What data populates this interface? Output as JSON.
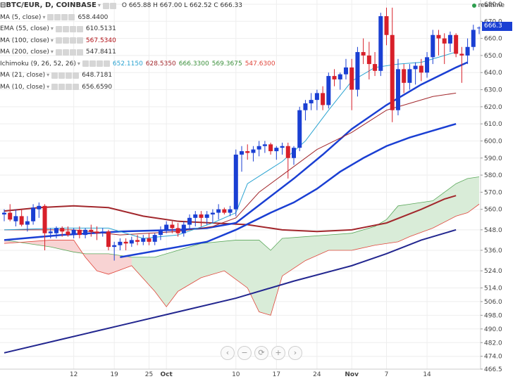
{
  "header": {
    "symbol": "BTC/EUR, D, COINBASE",
    "ohlc": "O 665.88 H 667.00 L 662.52 C 666.33"
  },
  "realtime_label": "realtime",
  "last_price": "666.3",
  "indicators": [
    {
      "name": "MA (5, close)",
      "values": [
        "658.4400"
      ],
      "colors": [
        "#333333"
      ]
    },
    {
      "name": "EMA (55, close)",
      "values": [
        "610.5131"
      ],
      "colors": [
        "#333333"
      ]
    },
    {
      "name": "MA (100, close)",
      "values": [
        "567.5340"
      ],
      "colors": [
        "#b11016"
      ]
    },
    {
      "name": "MA (200, close)",
      "values": [
        "547.8411"
      ],
      "colors": [
        "#333333"
      ]
    },
    {
      "name": "Ichimoku (9, 26, 52, 26)",
      "values": [
        "652.1150",
        "628.5350",
        "666.3300",
        "569.3675",
        "547.6300"
      ],
      "colors": [
        "#2aa3d1",
        "#a2272c",
        "#3a8f3a",
        "#3a8f3a",
        "#e0453a"
      ]
    },
    {
      "name": "MA (21, close)",
      "values": [
        "648.7181"
      ],
      "colors": [
        "#333333"
      ]
    },
    {
      "name": "MA (10, close)",
      "values": [
        "656.6590"
      ],
      "colors": [
        "#333333"
      ]
    }
  ],
  "nav_buttons": [
    {
      "name": "scroll-left-button",
      "glyph": "‹"
    },
    {
      "name": "zoom-out-button",
      "glyph": "−"
    },
    {
      "name": "reset-button",
      "glyph": "⟳"
    },
    {
      "name": "zoom-in-button",
      "glyph": "+"
    },
    {
      "name": "scroll-right-button",
      "glyph": "›"
    }
  ],
  "chart_data": {
    "type": "candlestick",
    "y_ticks": [
      466.5,
      474.0,
      482.0,
      490.0,
      498.0,
      506.0,
      514.0,
      524.0,
      536.0,
      548.0,
      560.0,
      570.0,
      580.0,
      590.0,
      600.0,
      610.0,
      620.0,
      630.0,
      640.0,
      650.0,
      660.0,
      670.0,
      680.0
    ],
    "x_labels": [
      "12",
      "19",
      "25",
      "Oct",
      "10",
      "17",
      "24",
      "Nov",
      "7",
      "14"
    ],
    "x_label_days": [
      12,
      19,
      25,
      28,
      40,
      47,
      54,
      60,
      66,
      73
    ],
    "colors": {
      "up": "#1a3fd3",
      "down": "#d8202a",
      "ma100": "#a2272c",
      "ma200": "#22268f",
      "trend": "#1a3fd3",
      "cloud_bull": "#d9ecd8",
      "cloud_bear": "#f8d3d3",
      "tenkan": "#2aa3d1",
      "kijun": "#a2272c",
      "grid": "#eeeeee"
    },
    "candles": [
      [
        557.0,
        560.0,
        553.0,
        558.0
      ],
      [
        558.0,
        563.0,
        553.0,
        554.0
      ],
      [
        553.0,
        560.0,
        550.0,
        556.0
      ],
      [
        556.0,
        560.0,
        550.0,
        551.0
      ],
      [
        551.0,
        556.0,
        547.0,
        553.0
      ],
      [
        553.0,
        563.0,
        551.0,
        561.0
      ],
      [
        560.0,
        564.0,
        555.0,
        562.0
      ],
      [
        562.0,
        563.0,
        536.0,
        546.0
      ],
      [
        546.0,
        549.0,
        543.0,
        547.0
      ],
      [
        546.0,
        550.0,
        543.0,
        549.0
      ],
      [
        549.0,
        550.0,
        544.0,
        547.0
      ],
      [
        547.0,
        550.0,
        544.0,
        545.0
      ],
      [
        545.0,
        549.0,
        543.0,
        548.0
      ],
      [
        548.0,
        550.0,
        543.0,
        545.0
      ],
      [
        545.0,
        549.0,
        543.0,
        548.0
      ],
      [
        548.0,
        551.0,
        544.0,
        547.0
      ],
      [
        547.0,
        550.0,
        542.0,
        546.0
      ],
      [
        546.0,
        549.0,
        544.0,
        547.0
      ],
      [
        547.0,
        548.0,
        536.0,
        538.0
      ],
      [
        538.0,
        541.0,
        530.0,
        539.0
      ],
      [
        539.0,
        543.0,
        536.0,
        541.0
      ],
      [
        541.0,
        543.0,
        536.0,
        540.0
      ],
      [
        540.0,
        544.0,
        538.0,
        542.0
      ],
      [
        542.0,
        545.0,
        539.0,
        541.0
      ],
      [
        541.0,
        545.0,
        539.0,
        543.0
      ],
      [
        543.0,
        546.0,
        539.0,
        541.0
      ],
      [
        541.0,
        546.0,
        539.0,
        545.0
      ],
      [
        545.0,
        550.0,
        542.0,
        548.0
      ],
      [
        548.0,
        553.0,
        546.0,
        551.0
      ],
      [
        551.0,
        553.0,
        546.0,
        549.0
      ],
      [
        549.0,
        552.0,
        544.0,
        546.0
      ],
      [
        546.0,
        553.0,
        544.0,
        551.0
      ],
      [
        551.0,
        557.0,
        548.0,
        555.0
      ],
      [
        555.0,
        559.0,
        550.0,
        557.0
      ],
      [
        557.0,
        559.0,
        550.0,
        555.0
      ],
      [
        555.0,
        559.0,
        551.0,
        557.0
      ],
      [
        557.0,
        560.0,
        552.0,
        558.0
      ],
      [
        558.0,
        563.0,
        554.0,
        560.0
      ],
      [
        560.0,
        561.0,
        557.0,
        558.0
      ],
      [
        558.0,
        562.0,
        556.0,
        560.0
      ],
      [
        560.0,
        595.0,
        556.0,
        592.0
      ],
      [
        592.0,
        597.0,
        582.0,
        594.0
      ],
      [
        594.0,
        598.0,
        589.0,
        593.0
      ],
      [
        593.0,
        597.0,
        588.0,
        595.0
      ],
      [
        595.0,
        600.0,
        591.0,
        597.0
      ],
      [
        597.0,
        600.0,
        593.0,
        598.0
      ],
      [
        598.0,
        599.0,
        592.0,
        594.0
      ],
      [
        594.0,
        597.0,
        589.0,
        596.0
      ],
      [
        596.0,
        599.0,
        592.0,
        597.0
      ],
      [
        597.0,
        599.0,
        578.0,
        590.0
      ],
      [
        590.0,
        597.0,
        586.0,
        596.0
      ],
      [
        596.0,
        620.0,
        594.0,
        618.0
      ],
      [
        618.0,
        624.0,
        612.0,
        622.0
      ],
      [
        622.0,
        628.0,
        618.0,
        624.0
      ],
      [
        624.0,
        630.0,
        618.0,
        628.0
      ],
      [
        628.0,
        632.0,
        618.0,
        621.0
      ],
      [
        621.0,
        640.0,
        619.0,
        638.0
      ],
      [
        638.0,
        642.0,
        632.0,
        636.0
      ],
      [
        636.0,
        640.0,
        630.0,
        639.0
      ],
      [
        639.0,
        648.0,
        636.0,
        643.0
      ],
      [
        643.0,
        648.0,
        618.0,
        630.0
      ],
      [
        630.0,
        655.0,
        626.0,
        652.0
      ],
      [
        652.0,
        660.0,
        645.0,
        650.0
      ],
      [
        650.0,
        658.0,
        636.0,
        645.0
      ],
      [
        645.0,
        652.0,
        638.0,
        641.0
      ],
      [
        641.0,
        675.0,
        638.0,
        673.0
      ],
      [
        673.0,
        678.0,
        656.0,
        662.0
      ],
      [
        662.0,
        678.0,
        611.0,
        618.0
      ],
      [
        618.0,
        648.0,
        615.0,
        642.0
      ],
      [
        642.0,
        645.0,
        628.0,
        634.0
      ],
      [
        634.0,
        645.0,
        630.0,
        642.0
      ],
      [
        642.0,
        646.0,
        633.0,
        644.0
      ],
      [
        644.0,
        648.0,
        635.0,
        640.0
      ],
      [
        640.0,
        652.0,
        637.0,
        649.0
      ],
      [
        649.0,
        665.0,
        645.0,
        662.0
      ],
      [
        662.0,
        665.0,
        650.0,
        660.0
      ],
      [
        660.0,
        663.0,
        645.0,
        657.0
      ],
      [
        657.0,
        664.0,
        652.0,
        662.0
      ],
      [
        662.0,
        663.0,
        649.0,
        651.0
      ],
      [
        651.0,
        655.0,
        634.0,
        650.0
      ],
      [
        650.0,
        660.0,
        645.0,
        655.0
      ],
      [
        655.0,
        668.0,
        653.0,
        665.0
      ],
      [
        665.9,
        667.0,
        662.5,
        666.3
      ]
    ],
    "ma100": [
      [
        0,
        559
      ],
      [
        6,
        561
      ],
      [
        12,
        562
      ],
      [
        18,
        561
      ],
      [
        24,
        556
      ],
      [
        30,
        553
      ],
      [
        36,
        552
      ],
      [
        42,
        551
      ],
      [
        48,
        548
      ],
      [
        54,
        547
      ],
      [
        60,
        548
      ],
      [
        66,
        552
      ],
      [
        72,
        560
      ],
      [
        76,
        566
      ],
      [
        78,
        568
      ]
    ],
    "ma200": [
      [
        0,
        476
      ],
      [
        10,
        484
      ],
      [
        20,
        492
      ],
      [
        30,
        500
      ],
      [
        40,
        508
      ],
      [
        50,
        518
      ],
      [
        60,
        527
      ],
      [
        66,
        534
      ],
      [
        72,
        542
      ],
      [
        76,
        546
      ],
      [
        78,
        548
      ]
    ],
    "ema55": [
      [
        20,
        532
      ],
      [
        35,
        541
      ],
      [
        40,
        548
      ],
      [
        46,
        558
      ],
      [
        50,
        564
      ],
      [
        54,
        572
      ],
      [
        58,
        582
      ],
      [
        62,
        590
      ],
      [
        66,
        597
      ],
      [
        70,
        602
      ],
      [
        74,
        606
      ],
      [
        78,
        610
      ]
    ],
    "trend": [
      [
        0,
        542
      ],
      [
        10,
        545
      ],
      [
        20,
        547
      ],
      [
        30,
        548
      ],
      [
        35,
        549
      ],
      [
        40,
        552
      ],
      [
        45,
        565
      ],
      [
        50,
        578
      ],
      [
        55,
        592
      ],
      [
        60,
        607
      ],
      [
        66,
        621
      ],
      [
        72,
        633
      ],
      [
        78,
        643
      ],
      [
        80,
        646
      ]
    ],
    "tenkan": [
      [
        0,
        548
      ],
      [
        10,
        549
      ],
      [
        18,
        549
      ],
      [
        24,
        543
      ],
      [
        30,
        545
      ],
      [
        36,
        552
      ],
      [
        40,
        558
      ],
      [
        42,
        575
      ],
      [
        48,
        588
      ],
      [
        52,
        600
      ],
      [
        56,
        618
      ],
      [
        60,
        635
      ],
      [
        64,
        643
      ],
      [
        68,
        645
      ],
      [
        72,
        646
      ],
      [
        78,
        652
      ]
    ],
    "kijun": [
      [
        0,
        548
      ],
      [
        12,
        548
      ],
      [
        20,
        545
      ],
      [
        30,
        547
      ],
      [
        36,
        550
      ],
      [
        40,
        555
      ],
      [
        44,
        570
      ],
      [
        48,
        580
      ],
      [
        54,
        595
      ],
      [
        60,
        605
      ],
      [
        66,
        618
      ],
      [
        70,
        622
      ],
      [
        74,
        626
      ],
      [
        78,
        628
      ]
    ],
    "cloud_a": [
      [
        0,
        542
      ],
      [
        8,
        538
      ],
      [
        12,
        535
      ],
      [
        14,
        534
      ],
      [
        18,
        534
      ],
      [
        22,
        532
      ],
      [
        26,
        532
      ],
      [
        30,
        536
      ],
      [
        34,
        540
      ],
      [
        40,
        542
      ],
      [
        44,
        542
      ],
      [
        46,
        536
      ],
      [
        48,
        543
      ],
      [
        52,
        544
      ],
      [
        56,
        545
      ],
      [
        60,
        546
      ],
      [
        64,
        550
      ],
      [
        66,
        554
      ],
      [
        68,
        562
      ],
      [
        70,
        563
      ],
      [
        74,
        565
      ],
      [
        78,
        575
      ],
      [
        80,
        578
      ],
      [
        82,
        579
      ]
    ],
    "cloud_b": [
      [
        0,
        540
      ],
      [
        8,
        542
      ],
      [
        12,
        542
      ],
      [
        14,
        532
      ],
      [
        16,
        524
      ],
      [
        18,
        522
      ],
      [
        22,
        527
      ],
      [
        26,
        512
      ],
      [
        28,
        503
      ],
      [
        30,
        512
      ],
      [
        34,
        520
      ],
      [
        38,
        524
      ],
      [
        42,
        514
      ],
      [
        44,
        500
      ],
      [
        46,
        498
      ],
      [
        48,
        521
      ],
      [
        52,
        530
      ],
      [
        56,
        536
      ],
      [
        60,
        536
      ],
      [
        64,
        539
      ],
      [
        68,
        541
      ],
      [
        70,
        544
      ],
      [
        74,
        549
      ],
      [
        78,
        556
      ],
      [
        80,
        558
      ],
      [
        82,
        563
      ]
    ]
  }
}
